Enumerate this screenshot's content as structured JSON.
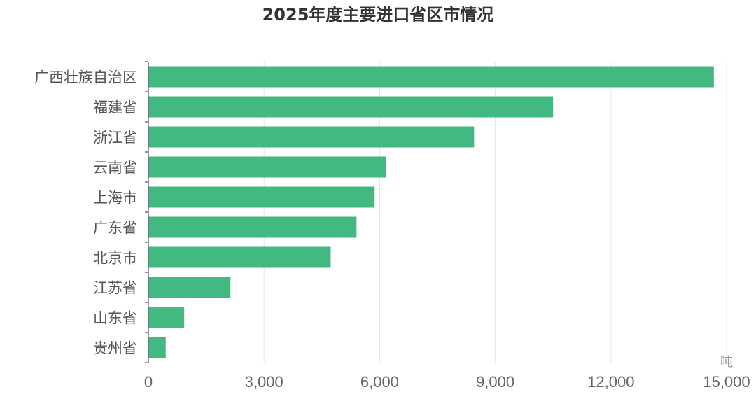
{
  "chart_data": {
    "type": "bar",
    "orientation": "horizontal",
    "title": "2025年度主要进口省区市情况",
    "categories": [
      "广西壮族自治区",
      "福建省",
      "浙江省",
      "云南省",
      "上海市",
      "广东省",
      "北京市",
      "江苏省",
      "山东省",
      "贵州省"
    ],
    "values": [
      14670,
      10500,
      8450,
      6170,
      5870,
      5400,
      4730,
      2130,
      930,
      450
    ],
    "xlim": [
      0,
      15000
    ],
    "xticks": [
      0,
      3000,
      6000,
      9000,
      12000,
      15000
    ],
    "xtick_labels": [
      "0",
      "3,000",
      "6,000",
      "9,000",
      "12,000",
      "15,000"
    ],
    "xunit": "吨",
    "grid": "vertical",
    "bar_color": "#43b982"
  }
}
